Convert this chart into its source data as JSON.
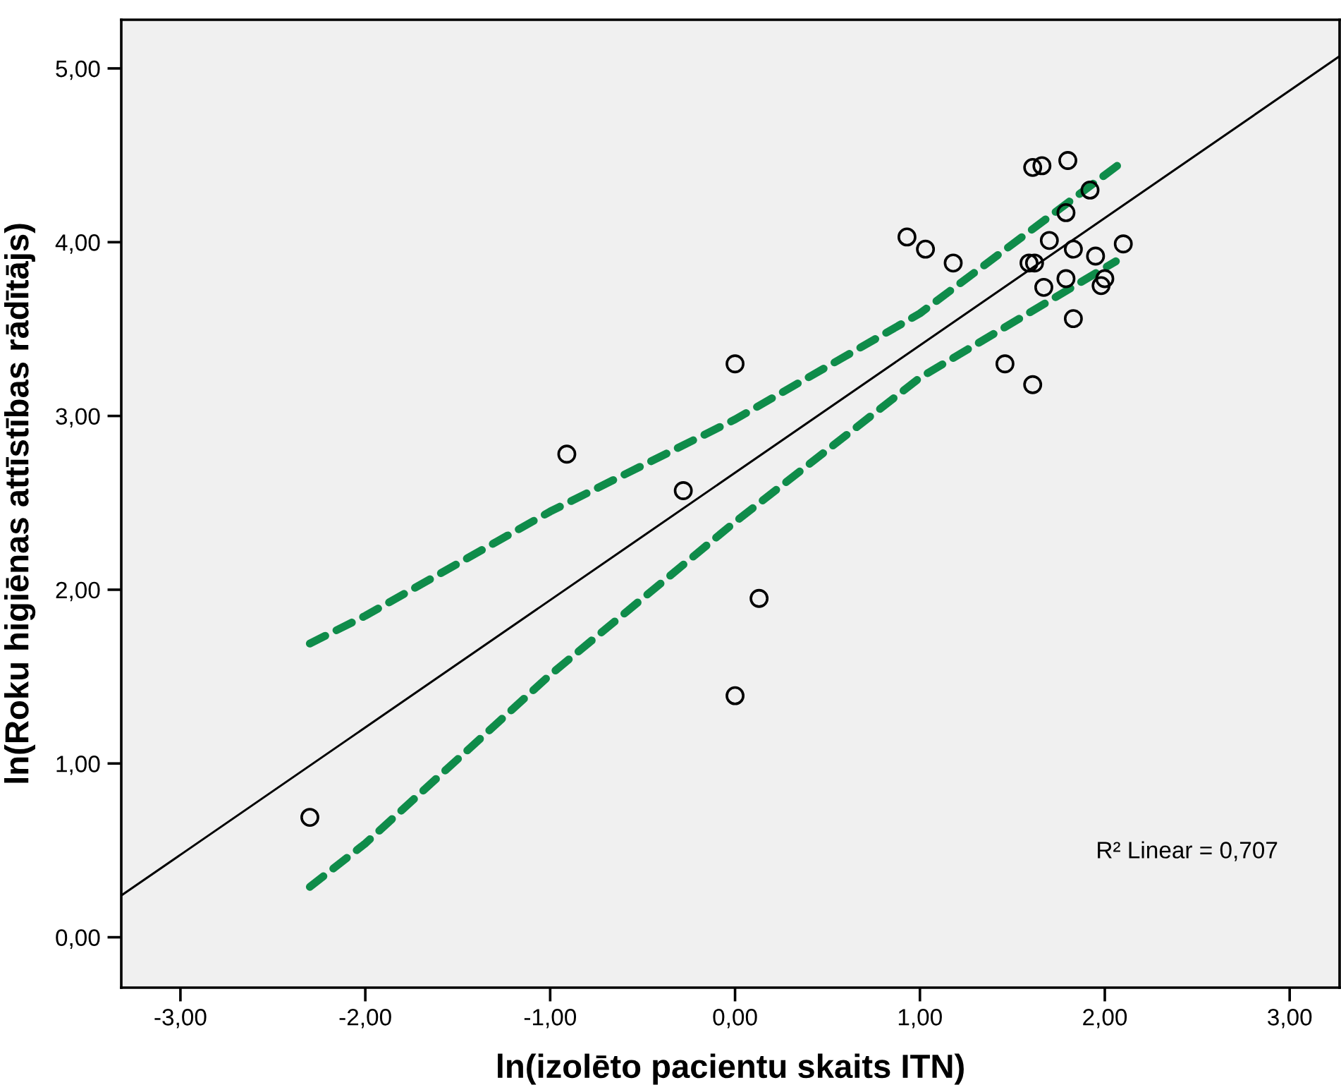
{
  "chart_data": {
    "type": "scatter",
    "xlabel": "ln(izolēto pacientu skaits ITN)",
    "ylabel": "ln(Roku higiēnas attīstības rādītājs)",
    "annotations": [
      "R² Linear = 0,707"
    ],
    "xlim": [
      -3.32,
      3.27
    ],
    "ylim": [
      -0.29,
      5.28
    ],
    "xticks": [
      {
        "value": -3,
        "label": "-3,00"
      },
      {
        "value": -2,
        "label": "-2,00"
      },
      {
        "value": -1,
        "label": "-1,00"
      },
      {
        "value": 0,
        "label": "0,00"
      },
      {
        "value": 1,
        "label": "1,00"
      },
      {
        "value": 2,
        "label": "2,00"
      },
      {
        "value": 3,
        "label": "3,00"
      }
    ],
    "yticks": [
      {
        "value": 0,
        "label": "0,00"
      },
      {
        "value": 1,
        "label": "1,00"
      },
      {
        "value": 2,
        "label": "2,00"
      },
      {
        "value": 3,
        "label": "3,00"
      },
      {
        "value": 4,
        "label": "4,00"
      },
      {
        "value": 5,
        "label": "5,00"
      }
    ],
    "grid": false,
    "marker": "circle",
    "series": [
      {
        "color": "#000000",
        "x": [
          -2.3,
          -0.91,
          -0.28,
          0.0,
          0.0,
          0.13,
          0.93,
          1.03,
          1.18,
          1.46,
          1.61,
          1.61,
          1.66,
          1.8,
          1.92,
          1.79,
          1.7,
          1.83,
          1.59,
          1.62,
          1.95,
          2.1,
          1.67,
          1.79,
          2.0,
          1.98,
          1.83
        ],
        "values": [
          0.69,
          2.78,
          2.57,
          3.3,
          1.39,
          1.95,
          4.03,
          3.96,
          3.88,
          3.3,
          3.18,
          4.43,
          4.44,
          4.47,
          4.3,
          4.17,
          4.01,
          3.96,
          3.88,
          3.88,
          3.92,
          3.99,
          3.74,
          3.79,
          3.79,
          3.75,
          3.56
        ]
      },
      {
        "type": "line",
        "color": "#000000",
        "line_style": "solid",
        "marker": "none",
        "x": [
          -3.32,
          3.27
        ],
        "values": [
          0.24,
          5.07
        ]
      },
      {
        "type": "line",
        "color": "#0f8c4a",
        "line_style": "dashed",
        "marker": "none",
        "x": [
          -2.3,
          -2.0,
          -1.0,
          0.0,
          1.0,
          2.08
        ],
        "values": [
          1.69,
          1.85,
          2.45,
          2.98,
          3.59,
          4.45
        ]
      },
      {
        "type": "line",
        "color": "#0f8c4a",
        "line_style": "dashed",
        "marker": "none",
        "x": [
          -2.3,
          -2.0,
          -1.0,
          0.0,
          1.0,
          2.06
        ],
        "values": [
          0.29,
          0.54,
          1.51,
          2.39,
          3.22,
          3.89
        ]
      }
    ]
  }
}
